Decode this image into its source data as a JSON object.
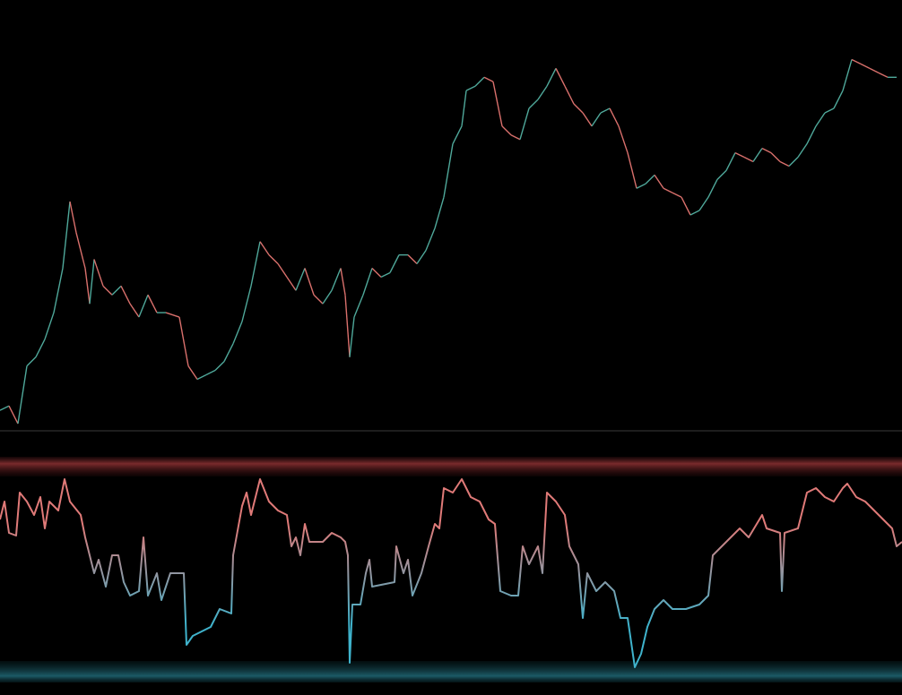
{
  "chart_data": [
    {
      "type": "line",
      "pane": "price",
      "xlim": [
        0,
        1006
      ],
      "ylim": [
        0,
        480
      ],
      "up_color": "#4fa89a",
      "down_color": "#d9706c",
      "x": [
        0,
        10,
        20,
        30,
        40,
        50,
        60,
        70,
        78,
        85,
        95,
        100,
        105,
        115,
        125,
        135,
        145,
        155,
        165,
        175,
        185,
        200,
        210,
        220,
        230,
        240,
        250,
        260,
        270,
        280,
        290,
        300,
        310,
        320,
        330,
        340,
        350,
        360,
        370,
        380,
        385,
        390,
        395,
        405,
        415,
        425,
        435,
        445,
        455,
        465,
        475,
        485,
        495,
        505,
        515,
        520,
        530,
        540,
        550,
        560,
        570,
        580,
        590,
        600,
        610,
        620,
        630,
        640,
        650,
        660,
        670,
        680,
        690,
        700,
        710,
        720,
        730,
        740,
        750,
        760,
        770,
        780,
        790,
        800,
        810,
        820,
        830,
        840,
        850,
        860,
        870,
        880,
        890,
        900,
        910,
        920,
        930,
        940,
        950,
        960,
        970,
        980,
        990,
        1000
      ],
      "values": [
        20,
        25,
        5,
        70,
        80,
        100,
        130,
        180,
        255,
        220,
        180,
        140,
        190,
        160,
        150,
        160,
        140,
        125,
        150,
        130,
        130,
        125,
        70,
        55,
        60,
        65,
        75,
        95,
        120,
        160,
        210,
        195,
        185,
        170,
        155,
        180,
        150,
        140,
        155,
        180,
        150,
        80,
        125,
        150,
        180,
        170,
        175,
        195,
        195,
        185,
        200,
        225,
        260,
        320,
        340,
        380,
        385,
        395,
        390,
        340,
        330,
        325,
        360,
        370,
        385,
        405,
        385,
        365,
        355,
        340,
        355,
        360,
        340,
        310,
        270,
        275,
        285,
        270,
        265,
        260,
        240,
        245,
        260,
        280,
        290,
        310,
        305,
        300,
        315,
        310,
        300,
        295,
        305,
        320,
        340,
        355,
        360,
        380,
        415,
        410,
        405,
        400,
        395,
        395
      ]
    },
    {
      "type": "line",
      "pane": "oscillator",
      "xlim": [
        0,
        1006
      ],
      "ylim": [
        0,
        250
      ],
      "color_high": "#e07a78",
      "color_low": "#3fb3cc",
      "x": [
        0,
        5,
        10,
        18,
        22,
        30,
        38,
        45,
        50,
        55,
        65,
        72,
        78,
        90,
        95,
        100,
        105,
        110,
        118,
        125,
        132,
        138,
        145,
        155,
        160,
        165,
        175,
        180,
        190,
        200,
        205,
        208,
        215,
        225,
        235,
        245,
        258,
        260,
        270,
        275,
        280,
        290,
        300,
        310,
        320,
        325,
        330,
        335,
        340,
        345,
        360,
        370,
        380,
        385,
        388,
        390,
        393,
        402,
        408,
        412,
        415,
        440,
        442,
        450,
        455,
        460,
        470,
        478,
        485,
        490,
        495,
        505,
        515,
        525,
        535,
        545,
        552,
        558,
        570,
        578,
        583,
        590,
        600,
        605,
        610,
        620,
        630,
        635,
        645,
        650,
        655,
        665,
        675,
        685,
        692,
        700,
        708,
        715,
        722,
        730,
        740,
        750,
        765,
        780,
        790,
        795,
        805,
        815,
        825,
        835,
        850,
        855,
        870,
        872,
        875,
        890,
        900,
        910,
        920,
        930,
        940,
        945,
        955,
        965,
        975,
        985,
        995,
        1000,
        1006
      ],
      "values": [
        180,
        200,
        165,
        162,
        210,
        200,
        185,
        205,
        170,
        200,
        190,
        225,
        200,
        185,
        160,
        140,
        120,
        135,
        105,
        140,
        140,
        110,
        95,
        100,
        160,
        95,
        120,
        90,
        120,
        120,
        120,
        40,
        50,
        55,
        60,
        80,
        75,
        140,
        195,
        210,
        185,
        225,
        200,
        190,
        185,
        150,
        160,
        140,
        175,
        155,
        155,
        165,
        160,
        155,
        140,
        20,
        85,
        85,
        120,
        135,
        105,
        110,
        150,
        120,
        135,
        95,
        120,
        150,
        175,
        170,
        215,
        210,
        225,
        205,
        200,
        180,
        175,
        100,
        95,
        95,
        150,
        130,
        150,
        120,
        210,
        200,
        185,
        150,
        130,
        70,
        120,
        100,
        110,
        100,
        70,
        70,
        15,
        30,
        60,
        80,
        90,
        80,
        80,
        85,
        95,
        140,
        150,
        160,
        170,
        160,
        185,
        170,
        165,
        100,
        165,
        170,
        210,
        215,
        205,
        200,
        215,
        220,
        205,
        200,
        190,
        180,
        170,
        150,
        155
      ]
    }
  ]
}
